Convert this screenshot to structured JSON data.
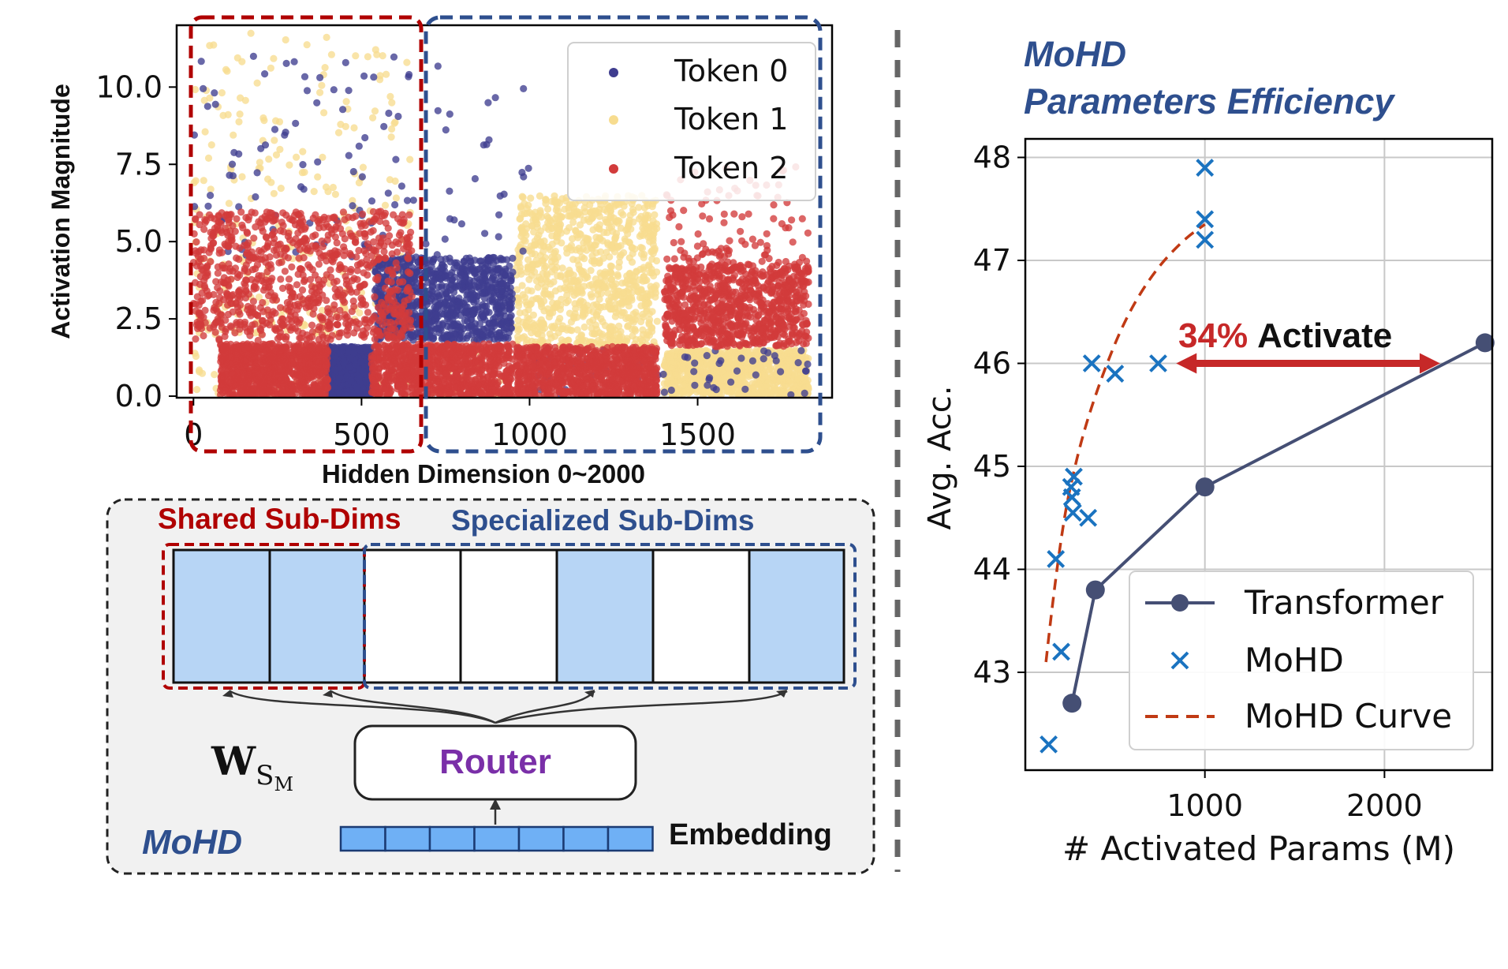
{
  "colors": {
    "token0": "#3f3d8f",
    "token1": "#f7dc8f",
    "token2": "#d23b3b",
    "shared_box": "#b00000",
    "specialized_box": "#2e4f8e",
    "transformer": "#454f74",
    "mohd": "#1a73c0",
    "mohd_curve": "#c03a14",
    "arrow": "#c62828",
    "router_text": "#7a2fa8",
    "cell_fill": "#b7d5f5",
    "embedding_fill": "#6fb0f5",
    "panel_bg": "#f1f1f1"
  },
  "activation_chart": {
    "xlabel": "Hidden Dimension 0~2000",
    "ylabel": "Activation Magnitude",
    "xticks": [
      "0",
      "500",
      "1000",
      "1500"
    ],
    "yticks": [
      "0.0",
      "2.5",
      "5.0",
      "7.5",
      "10.0"
    ],
    "legend": [
      "Token 0",
      "Token 1",
      "Token 2"
    ]
  },
  "chart_data": [
    {
      "type": "scatter",
      "xlabel": "Hidden Dimension 0~2000",
      "ylabel": "Activation Magnitude",
      "xlim": [
        -50,
        1900
      ],
      "ylim": [
        -0.05,
        12
      ],
      "grid": false,
      "legend_position": "top-right",
      "series": [
        {
          "name": "Token 0",
          "clusters": [
            {
              "x": [
                400,
                530
              ],
              "y": [
                0,
                1.6
              ],
              "density": "high"
            },
            {
              "x": [
                540,
                950
              ],
              "y": [
                1.8,
                4.5
              ],
              "density": "high"
            },
            {
              "x": [
                0,
                1000
              ],
              "y": [
                4.5,
                11.0
              ],
              "density": "low"
            },
            {
              "x": [
                1000,
                1830
              ],
              "y": [
                0,
                1.5
              ],
              "density": "sparse"
            }
          ]
        },
        {
          "name": "Token 1",
          "clusters": [
            {
              "x": [
                960,
                1380
              ],
              "y": [
                1.6,
                6.5
              ],
              "density": "high"
            },
            {
              "x": [
                1400,
                1830
              ],
              "y": [
                0,
                1.5
              ],
              "density": "high"
            },
            {
              "x": [
                0,
                650
              ],
              "y": [
                2.0,
                11.8
              ],
              "density": "medium"
            },
            {
              "x": [
                0,
                950
              ],
              "y": [
                0,
                2.5
              ],
              "density": "low"
            }
          ]
        },
        {
          "name": "Token 2",
          "clusters": [
            {
              "x": [
                80,
                400
              ],
              "y": [
                0,
                1.7
              ],
              "density": "high"
            },
            {
              "x": [
                530,
                950
              ],
              "y": [
                0,
                1.7
              ],
              "density": "high"
            },
            {
              "x": [
                960,
                1380
              ],
              "y": [
                0,
                1.6
              ],
              "density": "high"
            },
            {
              "x": [
                1400,
                1830
              ],
              "y": [
                1.6,
                4.2
              ],
              "density": "high"
            },
            {
              "x": [
                0,
                650
              ],
              "y": [
                1.8,
                6.0
              ],
              "density": "high"
            },
            {
              "x": [
                1400,
                1830
              ],
              "y": [
                4.2,
                7.5
              ],
              "density": "low"
            }
          ]
        }
      ]
    },
    {
      "type": "line",
      "title": "MoHD Parameters Efficiency",
      "xlabel": "# Activated Params (M)",
      "ylabel": "Avg. Acc.",
      "xlim": [
        0,
        2600
      ],
      "ylim": [
        42.05,
        48.18
      ],
      "xticks": [
        1000,
        2000
      ],
      "yticks": [
        43,
        44,
        45,
        46,
        47,
        48
      ],
      "grid": true,
      "legend_position": "lower-right",
      "series": [
        {
          "name": "Transformer",
          "style": "line-marker",
          "x": [
            260,
            390,
            1000,
            2560
          ],
          "y": [
            42.7,
            43.8,
            44.8,
            46.2
          ]
        },
        {
          "name": "MoHD",
          "style": "x-marker",
          "x": [
            130,
            170,
            200,
            255,
            260,
            265,
            270,
            350,
            370,
            500,
            740,
            1000,
            1000,
            1000
          ],
          "y": [
            42.3,
            44.1,
            43.2,
            44.8,
            44.7,
            44.55,
            44.9,
            44.5,
            46.0,
            45.9,
            46.0,
            47.9,
            47.4,
            47.2
          ]
        },
        {
          "name": "MoHD Curve",
          "style": "dashed",
          "x": [
            115,
            190,
            300,
            420,
            560,
            720,
            880,
            1000
          ],
          "y": [
            43.1,
            44.3,
            45.2,
            45.85,
            46.45,
            46.9,
            47.2,
            47.35
          ]
        }
      ],
      "annotation": {
        "percent": "34%",
        "word": "Activate",
        "from_x": 840,
        "to_x": 2310,
        "y": 46.0
      }
    }
  ],
  "diagram": {
    "shared_label": "Shared Sub-Dims",
    "specialized_label": "Specialized Sub-Dims",
    "weight_symbol": "W",
    "weight_subscript": "S",
    "weight_subsubscript": "M",
    "router_label": "Router",
    "embedding_label": "Embedding",
    "model_name": "MoHD",
    "cells_active": [
      true,
      true,
      false,
      false,
      true,
      false,
      true
    ]
  },
  "efficiency_chart": {
    "title_line1": "MoHD",
    "title_line2": "Parameters Efficiency",
    "xlabel": "# Activated Params (M)",
    "ylabel": "Avg. Acc.",
    "xticks": [
      "1000",
      "2000"
    ],
    "yticks": [
      "43",
      "44",
      "45",
      "46",
      "47",
      "48"
    ],
    "legend": [
      "Transformer",
      "MoHD",
      "MoHD Curve"
    ],
    "annotation_percent": "34%",
    "annotation_word": "Activate"
  }
}
